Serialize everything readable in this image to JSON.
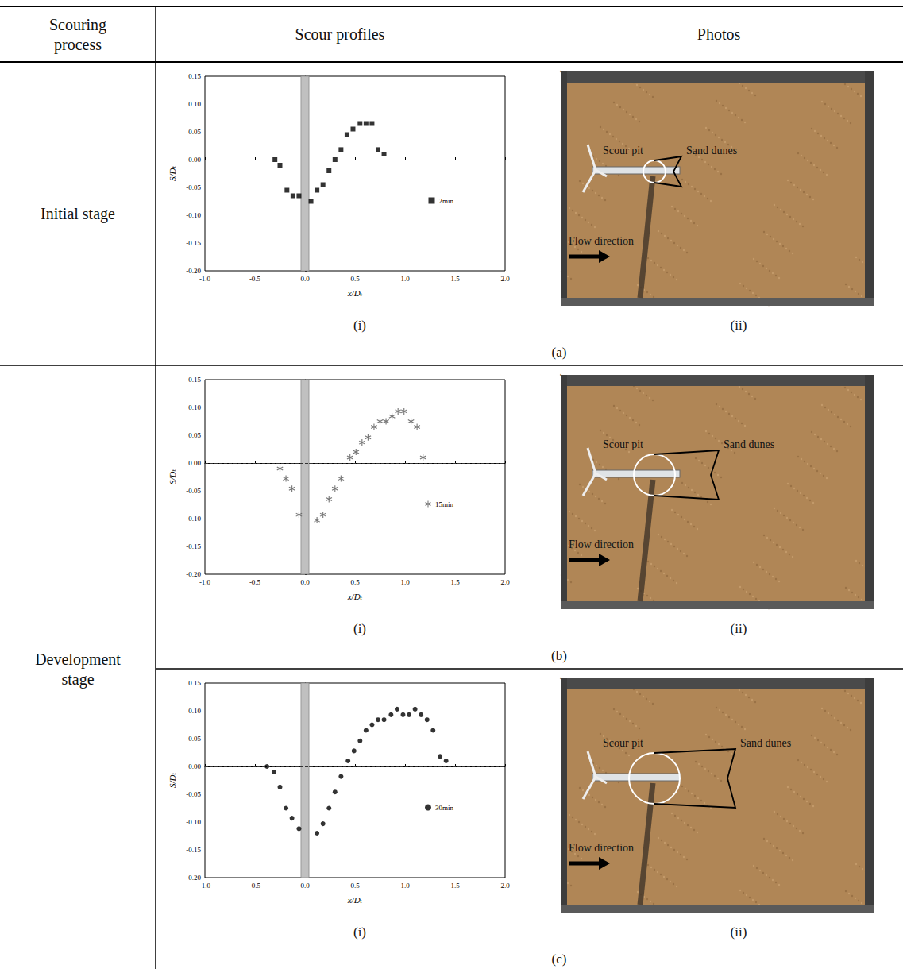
{
  "table": {
    "header": [
      "Scouring process",
      "Scour profiles",
      "Photos"
    ],
    "stages": [
      {
        "label": "Initial stage",
        "rows": [
          "(a)"
        ]
      },
      {
        "label": "Development stage",
        "rows": [
          "(b)",
          "(c)"
        ]
      }
    ],
    "sub_labels": [
      "(i)",
      "(ii)"
    ]
  },
  "photos": [
    {
      "labels": [
        "Scour pit",
        "Sand dunes",
        "Flow direction"
      ]
    },
    {
      "labels": [
        "Scour pit",
        "Sand dunes",
        "Flow direction"
      ]
    },
    {
      "labels": [
        "Scour pit",
        "Sand dunes",
        "Flow direction"
      ]
    }
  ],
  "chart_data": [
    {
      "type": "scatter",
      "xlabel": "x/Dₜ",
      "ylabel": "S/Dₜ",
      "xlim": [
        -1.0,
        2.0
      ],
      "ylim": [
        -0.2,
        0.15
      ],
      "xticks": [
        {
          "value": -1.0,
          "label": "-1.0"
        },
        {
          "value": -0.5,
          "label": "-0.5"
        },
        {
          "value": 0,
          "label": "0.0"
        },
        {
          "value": 0.5,
          "label": "0.5"
        },
        {
          "value": 1.0,
          "label": "1.0"
        },
        {
          "value": 1.5,
          "label": "1.5"
        },
        {
          "value": 2.0,
          "label": "2.0"
        }
      ],
      "yticks": [
        {
          "value": -0.2,
          "label": "-0.20"
        },
        {
          "value": -0.15,
          "label": "-0.15"
        },
        {
          "value": -0.1,
          "label": "-0.10"
        },
        {
          "value": -0.05,
          "label": "-0.05"
        },
        {
          "value": 0,
          "label": "0.00"
        },
        {
          "value": 0.05,
          "label": "0.05"
        },
        {
          "value": 0.1,
          "label": "0.10"
        },
        {
          "value": 0.15,
          "label": "0.15"
        }
      ],
      "legend": "right",
      "tower_band": [
        -0.04,
        0.04
      ],
      "reference_line": 0,
      "series": [
        {
          "name": "2min",
          "marker": "square",
          "color": "#000000",
          "x": [
            -0.3,
            -0.25,
            -0.18,
            -0.12,
            -0.06,
            0.06,
            0.12,
            0.18,
            0.24,
            0.3,
            0.36,
            0.42,
            0.48,
            0.55,
            0.61,
            0.67,
            0.73,
            0.79
          ],
          "values": [
            0.0,
            -0.01,
            -0.055,
            -0.065,
            -0.065,
            -0.075,
            -0.055,
            -0.045,
            -0.02,
            0.0,
            0.018,
            0.045,
            0.055,
            0.065,
            0.065,
            0.065,
            0.018,
            0.01
          ]
        }
      ]
    },
    {
      "type": "scatter",
      "xlabel": "x/Dₜ",
      "ylabel": "S/Dₜ",
      "xlim": [
        -1.0,
        2.0
      ],
      "ylim": [
        -0.2,
        0.15
      ],
      "xticks": [
        {
          "value": -1.0,
          "label": "-1.0"
        },
        {
          "value": -0.5,
          "label": "-0.5"
        },
        {
          "value": 0,
          "label": "0.0"
        },
        {
          "value": 0.5,
          "label": "0.5"
        },
        {
          "value": 1.0,
          "label": "1.0"
        },
        {
          "value": 1.5,
          "label": "1.5"
        },
        {
          "value": 2.0,
          "label": "2.0"
        }
      ],
      "yticks": [
        {
          "value": -0.2,
          "label": "-0.20"
        },
        {
          "value": -0.15,
          "label": "-0.15"
        },
        {
          "value": -0.1,
          "label": "-0.10"
        },
        {
          "value": -0.05,
          "label": "-0.05"
        },
        {
          "value": 0,
          "label": "0.00"
        },
        {
          "value": 0.05,
          "label": "0.05"
        },
        {
          "value": 0.1,
          "label": "0.10"
        },
        {
          "value": 0.15,
          "label": "0.15"
        }
      ],
      "legend": "right",
      "tower_band": [
        -0.04,
        0.04
      ],
      "reference_line": 0,
      "series": [
        {
          "name": "15min",
          "marker": "asterisk",
          "color": "#555555",
          "x": [
            -0.25,
            -0.19,
            -0.13,
            -0.06,
            0.12,
            0.18,
            0.24,
            0.3,
            0.36,
            0.45,
            0.51,
            0.57,
            0.63,
            0.69,
            0.75,
            0.81,
            0.87,
            0.93,
            0.99,
            1.06,
            1.12,
            1.18
          ],
          "values": [
            -0.01,
            -0.028,
            -0.046,
            -0.093,
            -0.103,
            -0.093,
            -0.065,
            -0.046,
            -0.028,
            0.01,
            0.02,
            0.037,
            0.046,
            0.065,
            0.075,
            0.075,
            0.084,
            0.093,
            0.093,
            0.075,
            0.065,
            0.01
          ]
        }
      ]
    },
    {
      "type": "scatter",
      "xlabel": "x/Dₜ",
      "ylabel": "S/Dₜ",
      "xlim": [
        -1.0,
        2.0
      ],
      "ylim": [
        -0.2,
        0.15
      ],
      "xticks": [
        {
          "value": -1.0,
          "label": "-1.0"
        },
        {
          "value": -0.5,
          "label": "-0.5"
        },
        {
          "value": 0,
          "label": "0.0"
        },
        {
          "value": 0.5,
          "label": "0.5"
        },
        {
          "value": 1.0,
          "label": "1.0"
        },
        {
          "value": 1.5,
          "label": "1.5"
        },
        {
          "value": 2.0,
          "label": "2.0"
        }
      ],
      "yticks": [
        {
          "value": -0.2,
          "label": "-0.20"
        },
        {
          "value": -0.15,
          "label": "-0.15"
        },
        {
          "value": -0.1,
          "label": "-0.10"
        },
        {
          "value": -0.05,
          "label": "-0.05"
        },
        {
          "value": 0,
          "label": "0.00"
        },
        {
          "value": 0.05,
          "label": "0.05"
        },
        {
          "value": 0.1,
          "label": "0.10"
        },
        {
          "value": 0.15,
          "label": "0.15"
        }
      ],
      "legend": "right",
      "tower_band": [
        -0.04,
        0.04
      ],
      "reference_line": 0,
      "series": [
        {
          "name": "30min",
          "marker": "circle",
          "color": "#000000",
          "x": [
            -0.38,
            -0.31,
            -0.25,
            -0.19,
            -0.13,
            -0.06,
            0.12,
            0.18,
            0.24,
            0.3,
            0.36,
            0.43,
            0.49,
            0.55,
            0.61,
            0.67,
            0.73,
            0.79,
            0.86,
            0.92,
            0.98,
            1.04,
            1.1,
            1.16,
            1.22,
            1.28,
            1.35,
            1.41
          ],
          "values": [
            0.0,
            -0.01,
            -0.037,
            -0.075,
            -0.093,
            -0.112,
            -0.12,
            -0.103,
            -0.075,
            -0.046,
            -0.018,
            0.01,
            0.028,
            0.046,
            0.065,
            0.075,
            0.084,
            0.084,
            0.093,
            0.103,
            0.093,
            0.093,
            0.103,
            0.093,
            0.084,
            0.065,
            0.018,
            0.01
          ]
        }
      ]
    }
  ]
}
